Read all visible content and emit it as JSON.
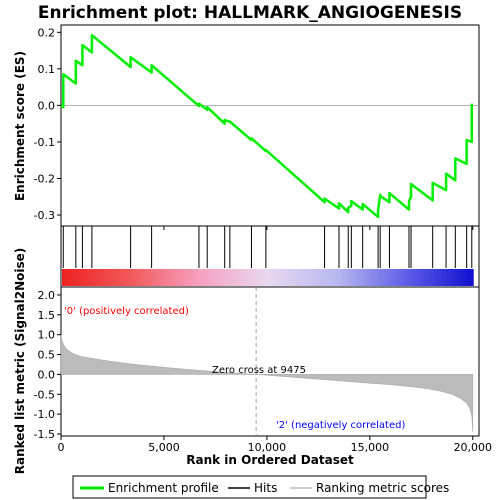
{
  "chart_data": {
    "type": "line",
    "title": "Enrichment plot: HALLMARK_ANGIOGENESIS",
    "xlabel": "Rank in Ordered Dataset",
    "ylabel_top": "Enrichment score (ES)",
    "ylabel_bottom": "Ranked list metric (Signal2Noise)",
    "xlim": [
      0,
      20300
    ],
    "x_ticks": [
      0,
      5000,
      10000,
      15000,
      20000
    ],
    "x_tick_labels": [
      "0",
      "5,000",
      "10,000",
      "15,000",
      "20,000"
    ],
    "es_ylim": [
      -0.33,
      0.22
    ],
    "es_ticks": [
      0.2,
      0.1,
      0.0,
      -0.1,
      -0.2,
      -0.3
    ],
    "es_tick_labels": [
      "0.2",
      "0.1",
      "0.0",
      "-0.1",
      "-0.2",
      "-0.3"
    ],
    "metric_ylim": [
      -1.55,
      2.2
    ],
    "metric_ticks": [
      2.0,
      1.5,
      1.0,
      0.5,
      0.0,
      -0.5,
      -1.0,
      -1.5
    ],
    "metric_tick_labels": [
      "2.0",
      "1.5",
      "1.0",
      "0.5",
      "0.0",
      "-0.5",
      "-1.0",
      "-1.5"
    ],
    "hits": [
      110,
      720,
      1040,
      1500,
      3380,
      4400,
      6700,
      7100,
      7950,
      8200,
      9250,
      9950,
      12800,
      13500,
      13950,
      14100,
      14650,
      15400,
      15500,
      15950,
      16900,
      17000,
      18050,
      18700,
      19150,
      19700,
      19950
    ],
    "enrichment_profile": {
      "x": [
        0,
        110,
        110,
        720,
        720,
        1040,
        1040,
        1500,
        1500,
        3380,
        3380,
        4400,
        4400,
        6700,
        6700,
        7100,
        7100,
        7950,
        7950,
        8200,
        8200,
        9250,
        9250,
        9950,
        9950,
        12800,
        12800,
        13500,
        13500,
        13950,
        13950,
        14100,
        14100,
        14650,
        14650,
        15400,
        15400,
        15500,
        15500,
        15950,
        15950,
        16900,
        16900,
        17000,
        17000,
        18050,
        18050,
        18700,
        18700,
        19150,
        19150,
        19700,
        19700,
        19950,
        19950
      ],
      "es": [
        0.0,
        -0.005,
        0.085,
        0.06,
        0.122,
        0.11,
        0.165,
        0.145,
        0.192,
        0.105,
        0.132,
        0.09,
        0.11,
        -0.002,
        0.005,
        -0.012,
        -0.005,
        -0.05,
        -0.04,
        -0.045,
        -0.044,
        -0.095,
        -0.09,
        -0.125,
        -0.122,
        -0.265,
        -0.255,
        -0.282,
        -0.268,
        -0.292,
        -0.28,
        -0.275,
        -0.262,
        -0.285,
        -0.27,
        -0.305,
        -0.285,
        -0.245,
        -0.248,
        -0.265,
        -0.24,
        -0.285,
        -0.262,
        -0.25,
        -0.215,
        -0.26,
        -0.212,
        -0.232,
        -0.187,
        -0.205,
        -0.145,
        -0.16,
        -0.095,
        -0.1,
        0.005
      ]
    },
    "gradient_colors": [
      "#ee2222",
      "#f05a5a",
      "#f7a0c0",
      "#e8d8f0",
      "#b8b8f0",
      "#6060e8",
      "#1010d0"
    ],
    "positive_label": "'0' (positively correlated)",
    "negative_label": "'2' (negatively correlated)",
    "zero_cross_label": "Zero cross at 9475",
    "zero_cross": 9475,
    "metric_curve": {
      "x": [
        0,
        50,
        150,
        300,
        600,
        1000,
        2000,
        3000,
        4000,
        5000,
        6000,
        7000,
        8000,
        9000,
        9475,
        10000,
        11000,
        12000,
        13000,
        14000,
        15000,
        16000,
        17000,
        17800,
        18500,
        19000,
        19400,
        19700,
        19850,
        19950,
        20000
      ],
      "values": [
        1.0,
        0.85,
        0.72,
        0.62,
        0.52,
        0.45,
        0.36,
        0.29,
        0.23,
        0.18,
        0.13,
        0.09,
        0.05,
        0.015,
        0.0,
        -0.02,
        -0.06,
        -0.1,
        -0.14,
        -0.18,
        -0.22,
        -0.26,
        -0.31,
        -0.36,
        -0.43,
        -0.5,
        -0.6,
        -0.72,
        -0.85,
        -1.05,
        -1.45
      ]
    },
    "legend": [
      "Enrichment profile",
      "Hits",
      "Ranking metric scores"
    ],
    "colors": {
      "profile": "#00ee00",
      "hits": "#000000",
      "metric_fill": "#bbbbbb",
      "positive_text": "#ff0000",
      "negative_text": "#0000ff",
      "zero_text": "#000000"
    }
  }
}
